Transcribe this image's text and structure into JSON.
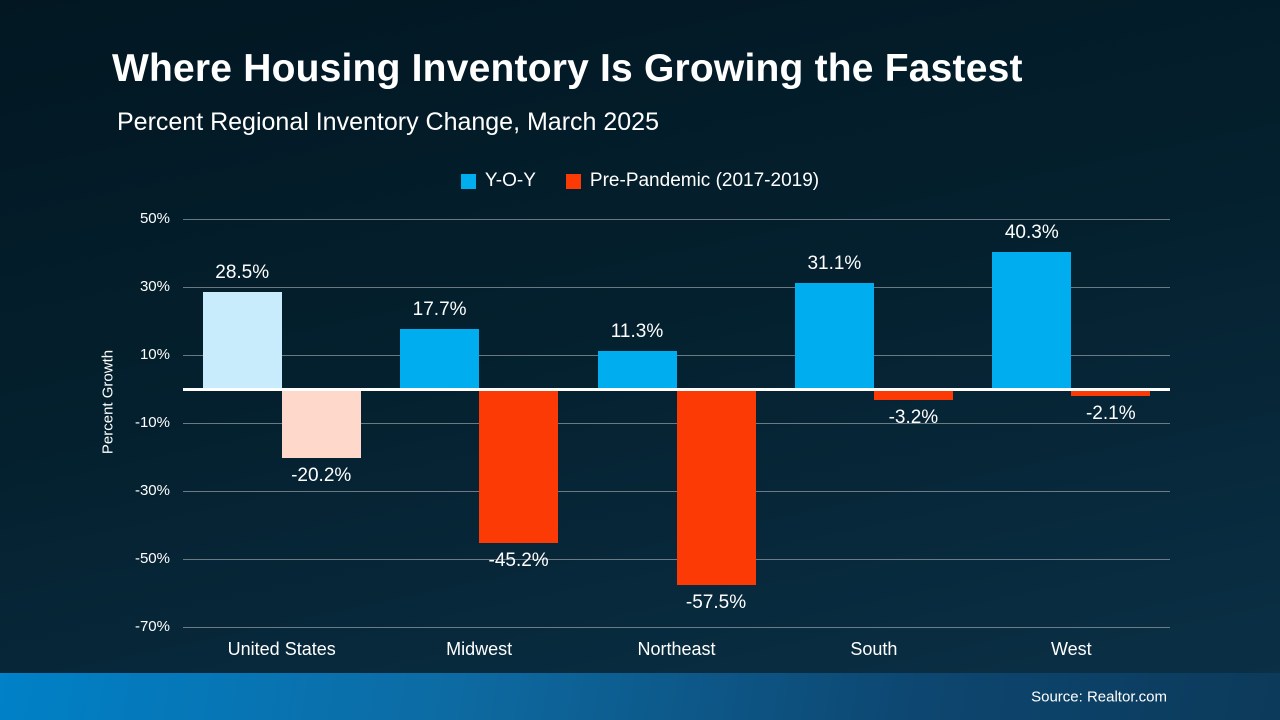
{
  "header": {
    "title": "Where Housing Inventory Is Growing the Fastest",
    "subtitle": "Percent Regional Inventory Change, March 2025"
  },
  "legend": [
    {
      "label": "Y-O-Y",
      "color": "#00aeef"
    },
    {
      "label": "Pre-Pandemic (2017-2019)",
      "color": "#fb3a05"
    }
  ],
  "chart_data": {
    "type": "bar",
    "title": "Where Housing Inventory Is Growing the Fastest",
    "subtitle": "Percent Regional Inventory Change, March 2025",
    "ylabel": "Percent Growth",
    "xlabel": "",
    "ylim": [
      -70,
      50
    ],
    "grid": true,
    "legend_position": "top",
    "categories": [
      "United States",
      "Midwest",
      "Northeast",
      "South",
      "West"
    ],
    "yticks": [
      {
        "value": 50,
        "label": "50%"
      },
      {
        "value": 30,
        "label": "30%"
      },
      {
        "value": 10,
        "label": "10%"
      },
      {
        "value": -10,
        "label": "-10%"
      },
      {
        "value": -30,
        "label": "-30%"
      },
      {
        "value": -50,
        "label": "-50%"
      },
      {
        "value": -70,
        "label": "-70%"
      }
    ],
    "series": [
      {
        "name": "Y-O-Y",
        "color": "#00aeef",
        "values": [
          28.5,
          17.7,
          11.3,
          31.1,
          40.3
        ],
        "labels": [
          "28.5%",
          "17.7%",
          "11.3%",
          "31.1%",
          "40.3%"
        ],
        "bar_colors": [
          "#c9ecfd",
          "#00aeef",
          "#00aeef",
          "#00aeef",
          "#00aeef"
        ]
      },
      {
        "name": "Pre-Pandemic (2017-2019)",
        "color": "#fb3a05",
        "values": [
          -20.2,
          -45.2,
          -57.5,
          -3.2,
          -2.1
        ],
        "labels": [
          "-20.2%",
          "-45.2%",
          "-57.5%",
          "-3.2%",
          "-2.1%"
        ],
        "bar_colors": [
          "#fdd8cb",
          "#fb3a05",
          "#fb3a05",
          "#fb3a05",
          "#fb3a05"
        ]
      }
    ],
    "zero_line_color": "#ffffff",
    "gridline_color": "#8e979e"
  },
  "footer": {
    "source": "Source: Realtor.com"
  }
}
